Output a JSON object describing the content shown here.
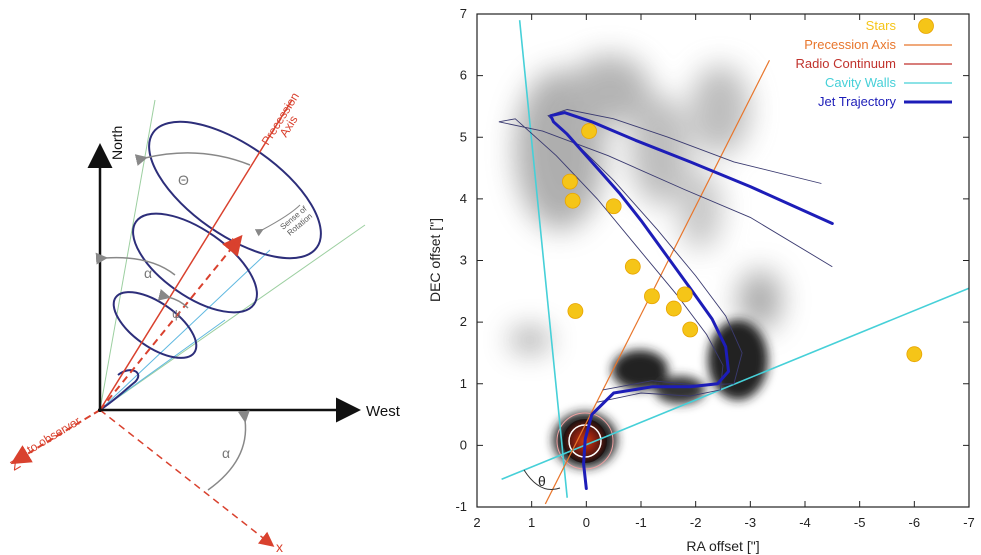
{
  "left_diagram": {
    "north_label": "North",
    "west_label": "West",
    "z_label": "Z",
    "to_observer_label": "to observer",
    "x_label": "x",
    "y_label": "y",
    "precession_axis_label_line1": "Precession",
    "precession_axis_label_line2": "Axis",
    "sense_label_line1": "Sense of",
    "sense_label_line2": "Rotation",
    "theta_symbol": "Θ",
    "alpha_symbol_top": "α",
    "alpha_symbol_bottom": "α",
    "psi_symbol": "ψ",
    "colors": {
      "axes": "#111111",
      "precession": "#d9412e",
      "helix": "#2d2e7a",
      "cone": "#9ccfa0",
      "projection": "#5fb8e0",
      "arc": "#888888"
    }
  },
  "chart_data": {
    "type": "scatter",
    "xlabel": "RA offset [\"]",
    "ylabel": "DEC offset [\"]",
    "xlim": [
      2,
      -7
    ],
    "ylim": [
      -1,
      7
    ],
    "x_ticks": [
      2,
      1,
      0,
      -1,
      -2,
      -3,
      -4,
      -5,
      -6,
      -7
    ],
    "x_tick_labels": [
      "2",
      "1",
      "0",
      "-1",
      "-2",
      "-3",
      "-4",
      "-5",
      "-6",
      "-7"
    ],
    "y_ticks": [
      -1,
      0,
      1,
      2,
      3,
      4,
      5,
      6,
      7
    ],
    "y_tick_labels": [
      "-1",
      "0",
      "1",
      "2",
      "3",
      "4",
      "5",
      "6",
      "7"
    ],
    "theta_label": "θ",
    "legend": {
      "placement": "top-right",
      "entries": [
        {
          "label": "Stars",
          "color": "#f5c518",
          "kind": "marker"
        },
        {
          "label": "Precession Axis",
          "color": "#e8762c",
          "kind": "line"
        },
        {
          "label": "Radio Continuum",
          "color": "#c0322c",
          "kind": "line"
        },
        {
          "label": "Cavity Walls",
          "color": "#46d0d8",
          "kind": "line"
        },
        {
          "label": "Jet Trajectory",
          "color": "#1d1db8",
          "kind": "thickline"
        }
      ]
    },
    "stars": [
      {
        "x": -0.05,
        "y": 5.1
      },
      {
        "x": 0.3,
        "y": 4.28
      },
      {
        "x": 0.25,
        "y": 3.97
      },
      {
        "x": -0.5,
        "y": 3.88
      },
      {
        "x": -0.85,
        "y": 2.9
      },
      {
        "x": -1.2,
        "y": 2.42
      },
      {
        "x": -1.6,
        "y": 2.22
      },
      {
        "x": -1.8,
        "y": 2.45
      },
      {
        "x": -1.9,
        "y": 1.88
      },
      {
        "x": 0.2,
        "y": 2.18
      },
      {
        "x": -6.0,
        "y": 1.48
      }
    ],
    "precession_axis": [
      [
        0.75,
        -0.95
      ],
      [
        -3.35,
        6.25
      ]
    ],
    "cavity_walls": [
      [
        [
          1.22,
          6.9
        ],
        [
          0.35,
          -0.85
        ]
      ],
      [
        [
          1.55,
          -0.55
        ],
        [
          -7.0,
          2.55
        ]
      ]
    ],
    "jet_trajectory": [
      [
        0.0,
        -0.7
      ],
      [
        0.05,
        -0.3
      ],
      [
        0.02,
        0.1
      ],
      [
        -0.1,
        0.5
      ],
      [
        -0.5,
        0.85
      ],
      [
        -1.2,
        0.95
      ],
      [
        -1.9,
        0.95
      ],
      [
        -2.4,
        1.0
      ],
      [
        -2.6,
        1.2
      ],
      [
        -2.55,
        1.6
      ],
      [
        -2.3,
        2.05
      ],
      [
        -1.9,
        2.55
      ],
      [
        -1.45,
        3.1
      ],
      [
        -1.0,
        3.65
      ],
      [
        -0.6,
        4.1
      ],
      [
        -0.25,
        4.45
      ],
      [
        0.05,
        4.75
      ],
      [
        0.35,
        5.05
      ],
      [
        0.6,
        5.25
      ],
      [
        0.65,
        5.35
      ],
      [
        0.4,
        5.4
      ],
      [
        -0.1,
        5.25
      ],
      [
        -0.9,
        4.95
      ],
      [
        -1.9,
        4.6
      ],
      [
        -3.0,
        4.2
      ],
      [
        -4.5,
        3.6
      ]
    ],
    "envelope_outer": [
      [
        -0.3,
        0.9
      ],
      [
        -1.2,
        1.05
      ],
      [
        -2.0,
        0.98
      ],
      [
        -2.7,
        1.0
      ],
      [
        -2.85,
        1.5
      ],
      [
        -2.55,
        2.1
      ],
      [
        -2.0,
        2.75
      ],
      [
        -1.3,
        3.5
      ],
      [
        -0.5,
        4.3
      ],
      [
        0.3,
        5.0
      ],
      [
        0.7,
        5.35
      ],
      [
        0.35,
        5.45
      ],
      [
        -0.5,
        5.3
      ],
      [
        -1.5,
        5.0
      ],
      [
        -2.7,
        4.6
      ],
      [
        -4.3,
        4.25
      ]
    ],
    "envelope_inner": [
      [
        -0.2,
        0.7
      ],
      [
        -1.0,
        0.85
      ],
      [
        -1.9,
        0.8
      ],
      [
        -2.45,
        0.9
      ],
      [
        -2.5,
        1.3
      ],
      [
        -2.2,
        1.8
      ],
      [
        -1.65,
        2.45
      ],
      [
        -0.9,
        3.25
      ],
      [
        -0.2,
        4.0
      ],
      [
        0.55,
        4.7
      ],
      [
        1.3,
        5.3
      ],
      [
        1.6,
        5.25
      ],
      [
        0.8,
        5.1
      ],
      [
        -0.4,
        4.7
      ],
      [
        -1.8,
        4.15
      ],
      [
        -3.0,
        3.7
      ],
      [
        -4.5,
        2.9
      ]
    ]
  }
}
